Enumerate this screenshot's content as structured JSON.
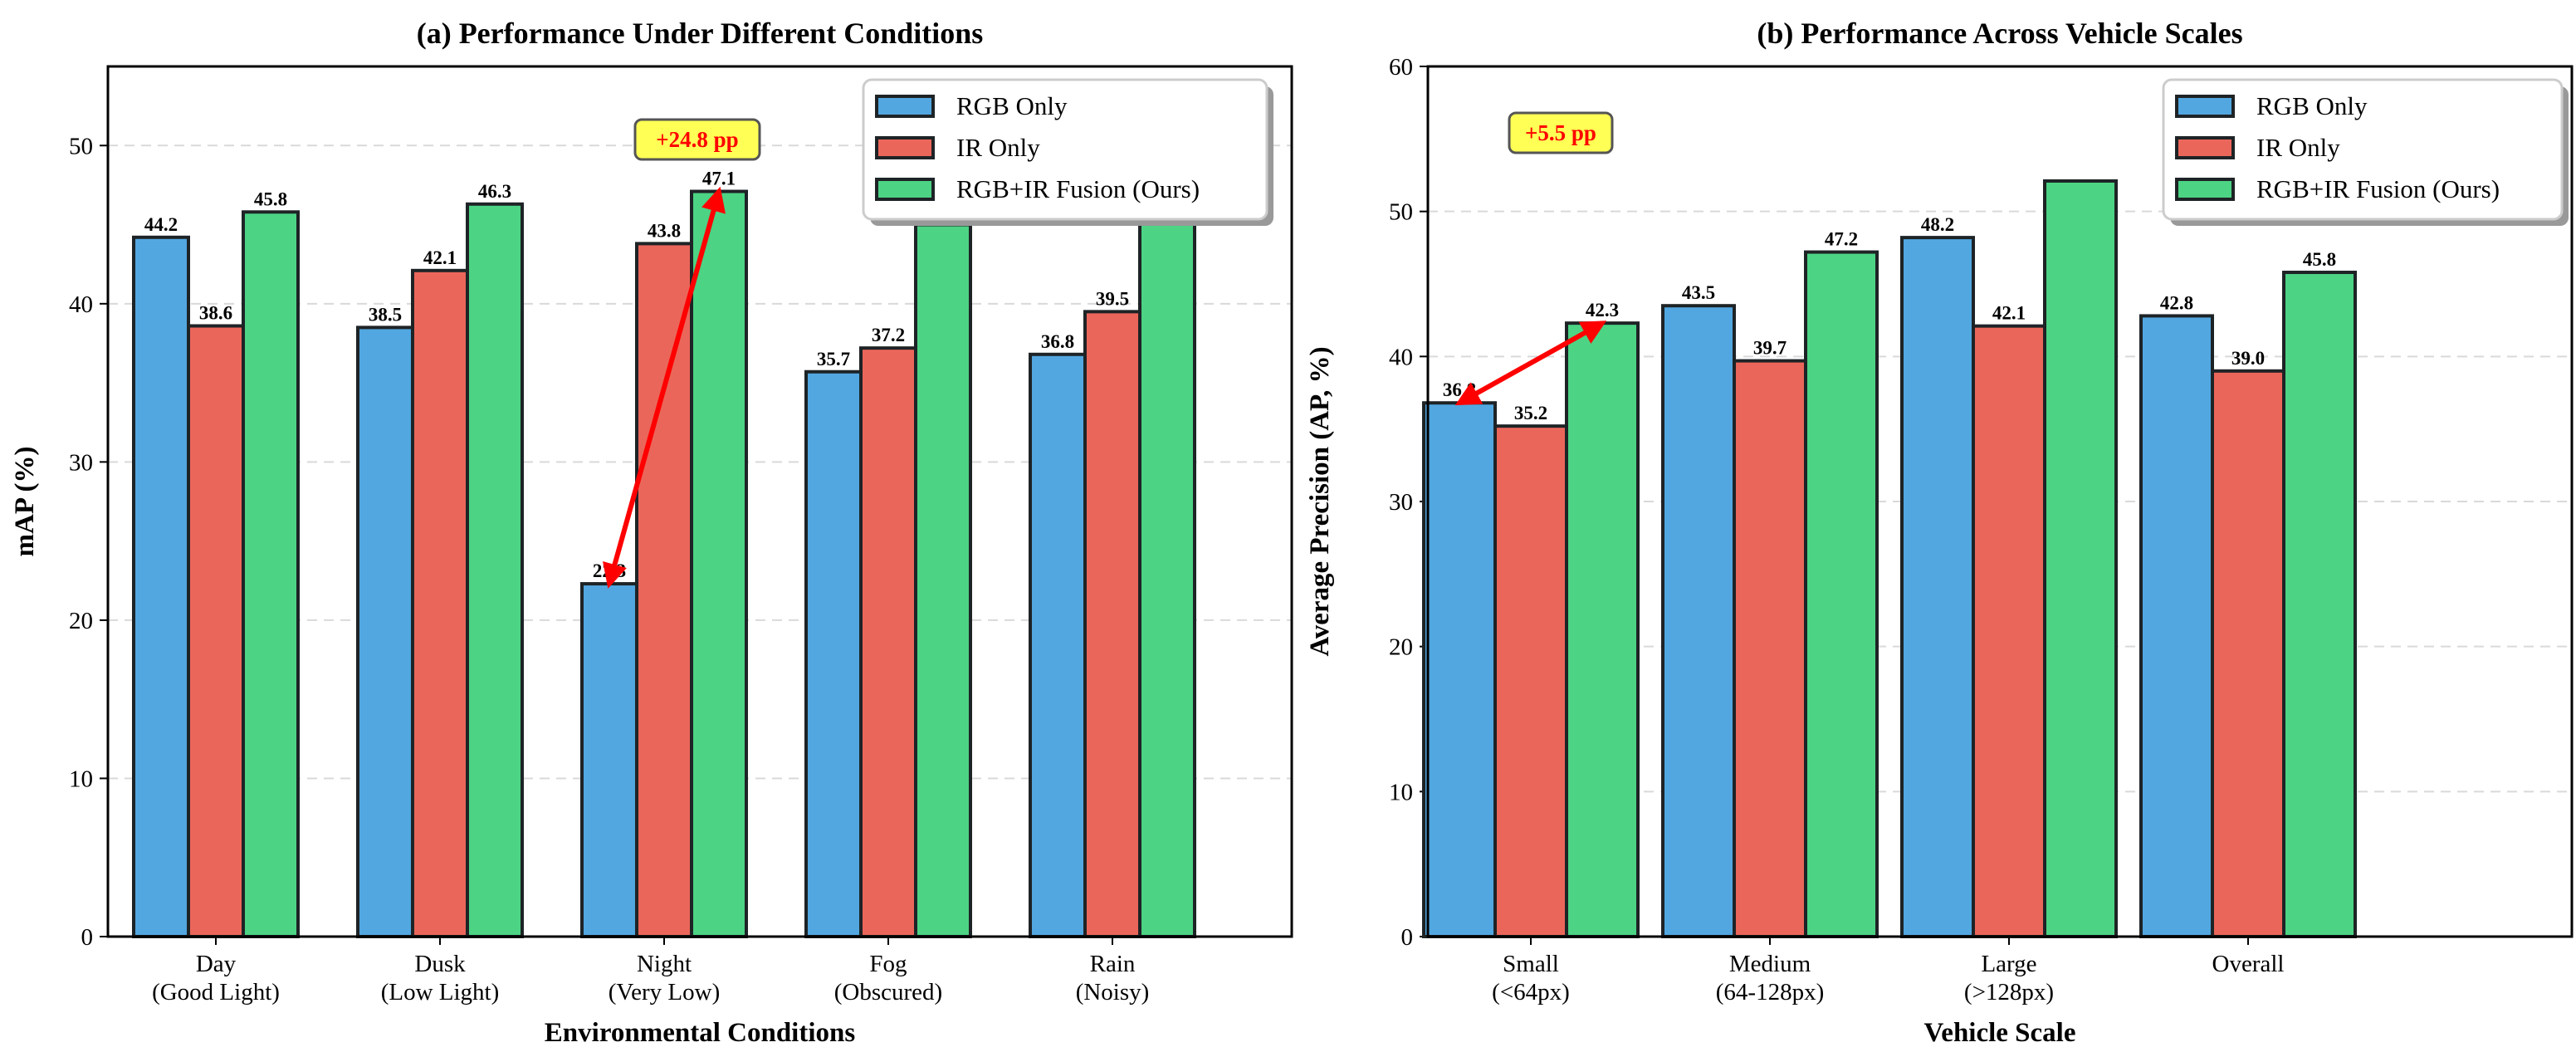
{
  "colors": {
    "rgb": "#52a7e0",
    "ir": "#eb665a",
    "fusion": "#4cd384",
    "annotation": "#ff0000",
    "annotation_bg": "#ffff55"
  },
  "chart_data": [
    {
      "type": "bar",
      "title": "(a) Performance Under Different Conditions",
      "xlabel": "Environmental Conditions",
      "ylabel": "mAP (%)",
      "ylim": [
        0,
        55
      ],
      "yticks": [
        "0",
        "10",
        "20",
        "30",
        "40",
        "50"
      ],
      "grid": true,
      "legend_position": "top-right",
      "categories": [
        [
          "Day",
          "(Good Light)"
        ],
        [
          "Dusk",
          "(Low Light)"
        ],
        [
          "Night",
          "(Very Low)"
        ],
        [
          "Fog",
          "(Obscured)"
        ],
        [
          "Rain",
          "(Noisy)"
        ]
      ],
      "series": [
        {
          "name": "RGB Only",
          "values": [
            44.2,
            38.5,
            22.3,
            35.7,
            36.8
          ],
          "labels": [
            "44.2",
            "38.5",
            "22.3",
            "35.7",
            "36.8"
          ]
        },
        {
          "name": "IR Only",
          "values": [
            38.6,
            42.1,
            43.8,
            37.2,
            39.5
          ],
          "labels": [
            "38.6",
            "42.1",
            "43.8",
            "37.2",
            "39.5"
          ]
        },
        {
          "name": "RGB+IR Fusion (Ours)",
          "values": [
            45.8,
            46.3,
            47.1,
            45.0,
            45.2
          ],
          "labels": [
            "45.8",
            "46.3",
            "47.1",
            "",
            ""
          ]
        }
      ],
      "annotation": {
        "text": "+24.8 pp",
        "from": {
          "category": 2,
          "series": 0
        },
        "to": {
          "category": 2,
          "series": 2
        }
      }
    },
    {
      "type": "bar",
      "title": "(b) Performance Across Vehicle Scales",
      "xlabel": "Vehicle Scale",
      "ylabel": "Average Precision (AP, %)",
      "ylim": [
        0,
        60
      ],
      "yticks": [
        "0",
        "10",
        "20",
        "30",
        "40",
        "50",
        "60"
      ],
      "grid": true,
      "legend_position": "top-right",
      "categories": [
        [
          "Small",
          "(<64px)"
        ],
        [
          "Medium",
          "(64-128px)"
        ],
        [
          "Large",
          "(>128px)"
        ],
        [
          "Overall",
          ""
        ]
      ],
      "series": [
        {
          "name": "RGB Only",
          "values": [
            36.8,
            43.5,
            48.2,
            42.8
          ],
          "labels": [
            "36.8",
            "43.5",
            "48.2",
            "42.8"
          ]
        },
        {
          "name": "IR Only",
          "values": [
            35.2,
            39.7,
            42.1,
            39.0
          ],
          "labels": [
            "35.2",
            "39.7",
            "42.1",
            "39.0"
          ]
        },
        {
          "name": "RGB+IR Fusion (Ours)",
          "values": [
            42.3,
            47.2,
            52.1,
            45.8
          ],
          "labels": [
            "42.3",
            "47.2",
            "",
            "45.8"
          ]
        }
      ],
      "annotation": {
        "text": "+5.5 pp",
        "from": {
          "category": 0,
          "series": 0
        },
        "to": {
          "category": 0,
          "series": 2
        }
      }
    }
  ]
}
